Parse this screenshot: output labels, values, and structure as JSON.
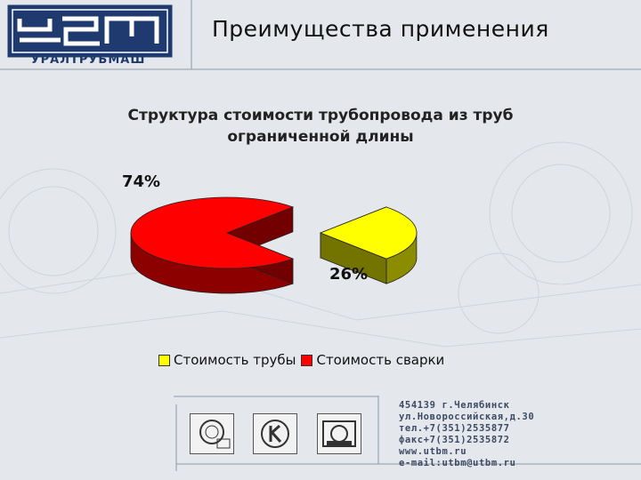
{
  "header": {
    "logo_text": "УРАЛТРУБМАШ",
    "title": "Преимущества применения"
  },
  "chart_data": {
    "type": "pie",
    "title": "Структура стоимости трубопровода из труб ограниченной длины",
    "title_lines": [
      "Структура стоимости трубопровода из труб",
      "ограниченной длины"
    ],
    "categories": [
      "Стоимость трубы",
      "Стоимость сварки"
    ],
    "values": [
      26,
      74
    ],
    "data_labels": [
      "26%",
      "74%"
    ],
    "colors": [
      "#ffff00",
      "#ff0000"
    ],
    "exploded": "Стоимость трубы",
    "legend_position": "bottom",
    "style": "3d"
  },
  "certificates": [
    {
      "icon": "certificate-seal-icon"
    },
    {
      "icon": "certificate-k-icon"
    },
    {
      "icon": "certificate-gost-icon"
    }
  ],
  "contacts": {
    "lines": [
      "454139 г.Челябинск",
      "ул.Новороссийская,д.30",
      "тел.+7(351)2535877",
      "факс+7(351)2535872",
      "www.utbm.ru",
      "e-mail:utbm@utbm.ru"
    ]
  }
}
